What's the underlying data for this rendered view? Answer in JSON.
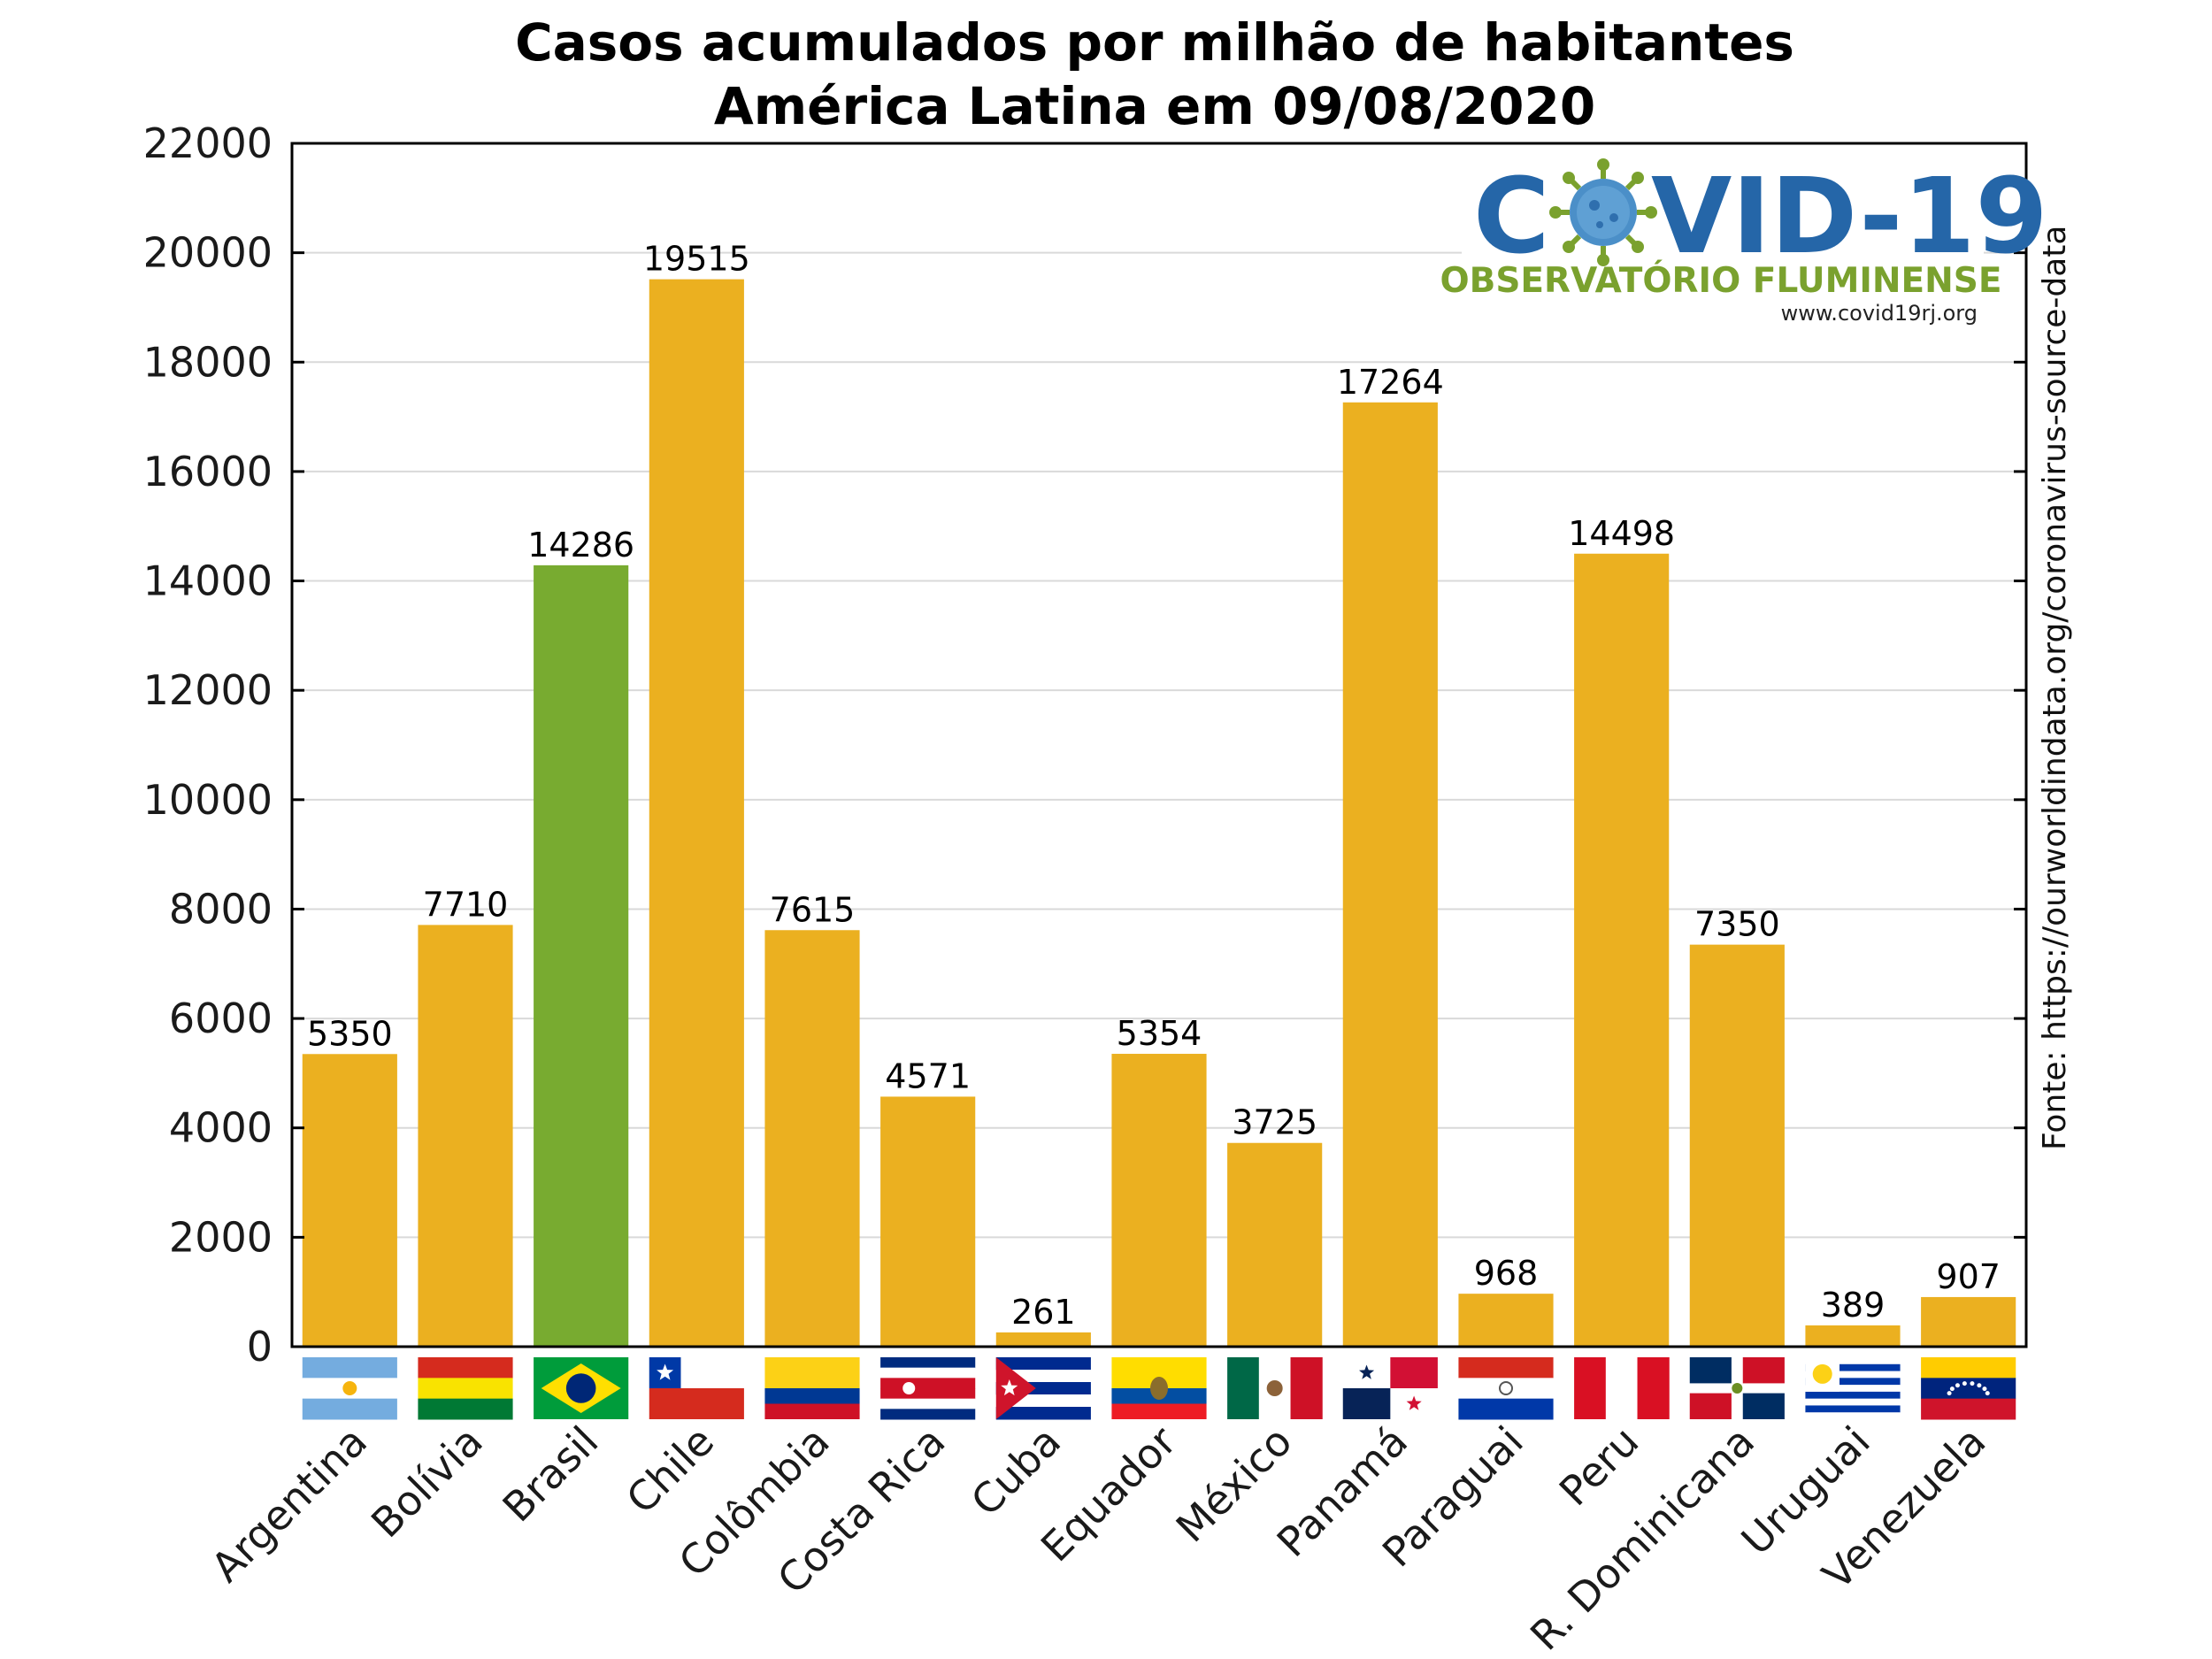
{
  "chart_data": {
    "type": "bar",
    "title_line1": "Casos acumulados por milhão de habitantes",
    "title_line2": "América Latina em 09/08/2020",
    "categories": [
      "Argentina",
      "Bolívia",
      "Brasil",
      "Chile",
      "Colômbia",
      "Costa Rica",
      "Cuba",
      "Equador",
      "México",
      "Panamá",
      "Paraguai",
      "Peru",
      "R. Dominicana",
      "Uruguai",
      "Venezuela"
    ],
    "values": [
      5350,
      7710,
      14286,
      19515,
      7615,
      4571,
      261,
      5354,
      3725,
      17264,
      968,
      14498,
      7350,
      389,
      907
    ],
    "highlight_category": "Brasil",
    "ylim": [
      0,
      22000
    ],
    "yticks": [
      0,
      2000,
      4000,
      6000,
      8000,
      10000,
      12000,
      14000,
      16000,
      18000,
      20000,
      22000
    ],
    "grid": true,
    "colors": {
      "bar": "#ebb020",
      "highlight": "#78ab30",
      "axis": "#000000",
      "grid": "#d9d9d9"
    },
    "flags": [
      "argentina-flag",
      "bolivia-flag",
      "brazil-flag",
      "chile-flag",
      "colombia-flag",
      "costa-rica-flag",
      "cuba-flag",
      "ecuador-flag",
      "mexico-flag",
      "panama-flag",
      "paraguay-flag",
      "peru-flag",
      "dominican-republic-flag",
      "uruguay-flag",
      "venezuela-flag"
    ]
  },
  "source_text": "Fonte: https://ourworldindata.org/coronavirus-source-data",
  "logo": {
    "title_left": "C",
    "title_right": "VID-19",
    "subtitle": "OBSERVATÓRIO FLUMINENSE",
    "url": "www.covid19rj.org",
    "colors": {
      "title": "#2566a8",
      "subtitle": "#7aa12e",
      "virus": "#4b8fc8"
    }
  }
}
